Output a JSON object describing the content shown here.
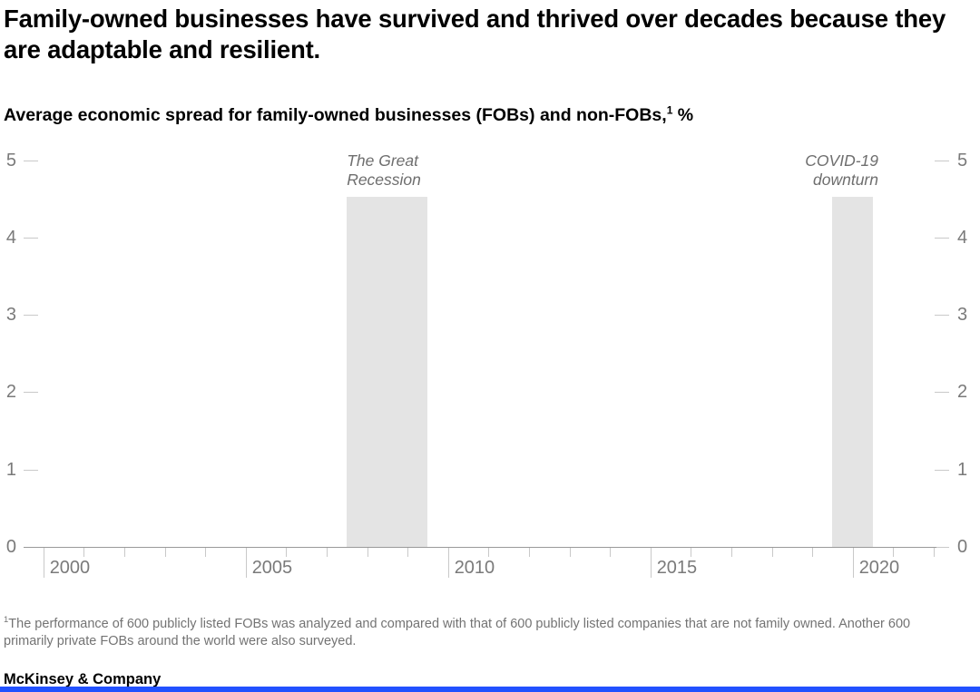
{
  "page": {
    "title": "Family-owned businesses have survived and thrived over decades because they are adaptable and resilient.",
    "footnote_marker": "1",
    "footnote_text": "The performance of 600 publicly listed FOBs was analyzed and compared with that of 600 publicly listed companies that are not family owned. Another 600 primarily private FOBs around the world were also surveyed.",
    "brand": "McKinsey & Company"
  },
  "chart_data": {
    "type": "line",
    "title": "Average economic spread for family-owned businesses (FOBs) and non-FOBs, %",
    "subtitle_parts": {
      "text": "Average economic spread for family-owned businesses (FOBs) and non-FOBs,",
      "footnote_marker": "1",
      "unit_suffix": " %"
    },
    "series": [],
    "content_note": "Empty chart frame: axes and recession annotation bands only, no data series plotted",
    "x_axis": {
      "tick_year_start": 2000,
      "tick_year_end": 2022,
      "labeled_ticks": [
        "2000",
        "2005",
        "2010",
        "2015",
        "2020"
      ],
      "grid": false
    },
    "y_axis": {
      "ticks": [
        "5",
        "4",
        "3",
        "2",
        "1",
        "0"
      ],
      "range": [
        0,
        5
      ],
      "mirrored_right": true,
      "grid": false
    },
    "annotations": [
      {
        "id": "great-recession",
        "label_lines": "The Great\nRecession",
        "x_start_year": 2007.5,
        "x_end_year": 2009.5,
        "top_value": 4.53,
        "label_align": "left"
      },
      {
        "id": "covid-19-downturn",
        "label_lines": "COVID-19\ndownturn",
        "x_start_year": 2019.5,
        "x_end_year": 2020.5,
        "top_value": 4.53,
        "label_align": "right"
      }
    ]
  },
  "colors": {
    "band_fill": "#e4e4e4",
    "axis_line": "#999999",
    "tick": "#c9c9c9",
    "axis_label": "#7a7a7a",
    "annotation_label": "#6e6e6e",
    "footnote": "#737373",
    "accent_bar": "#2251ff",
    "text": "#000000"
  }
}
